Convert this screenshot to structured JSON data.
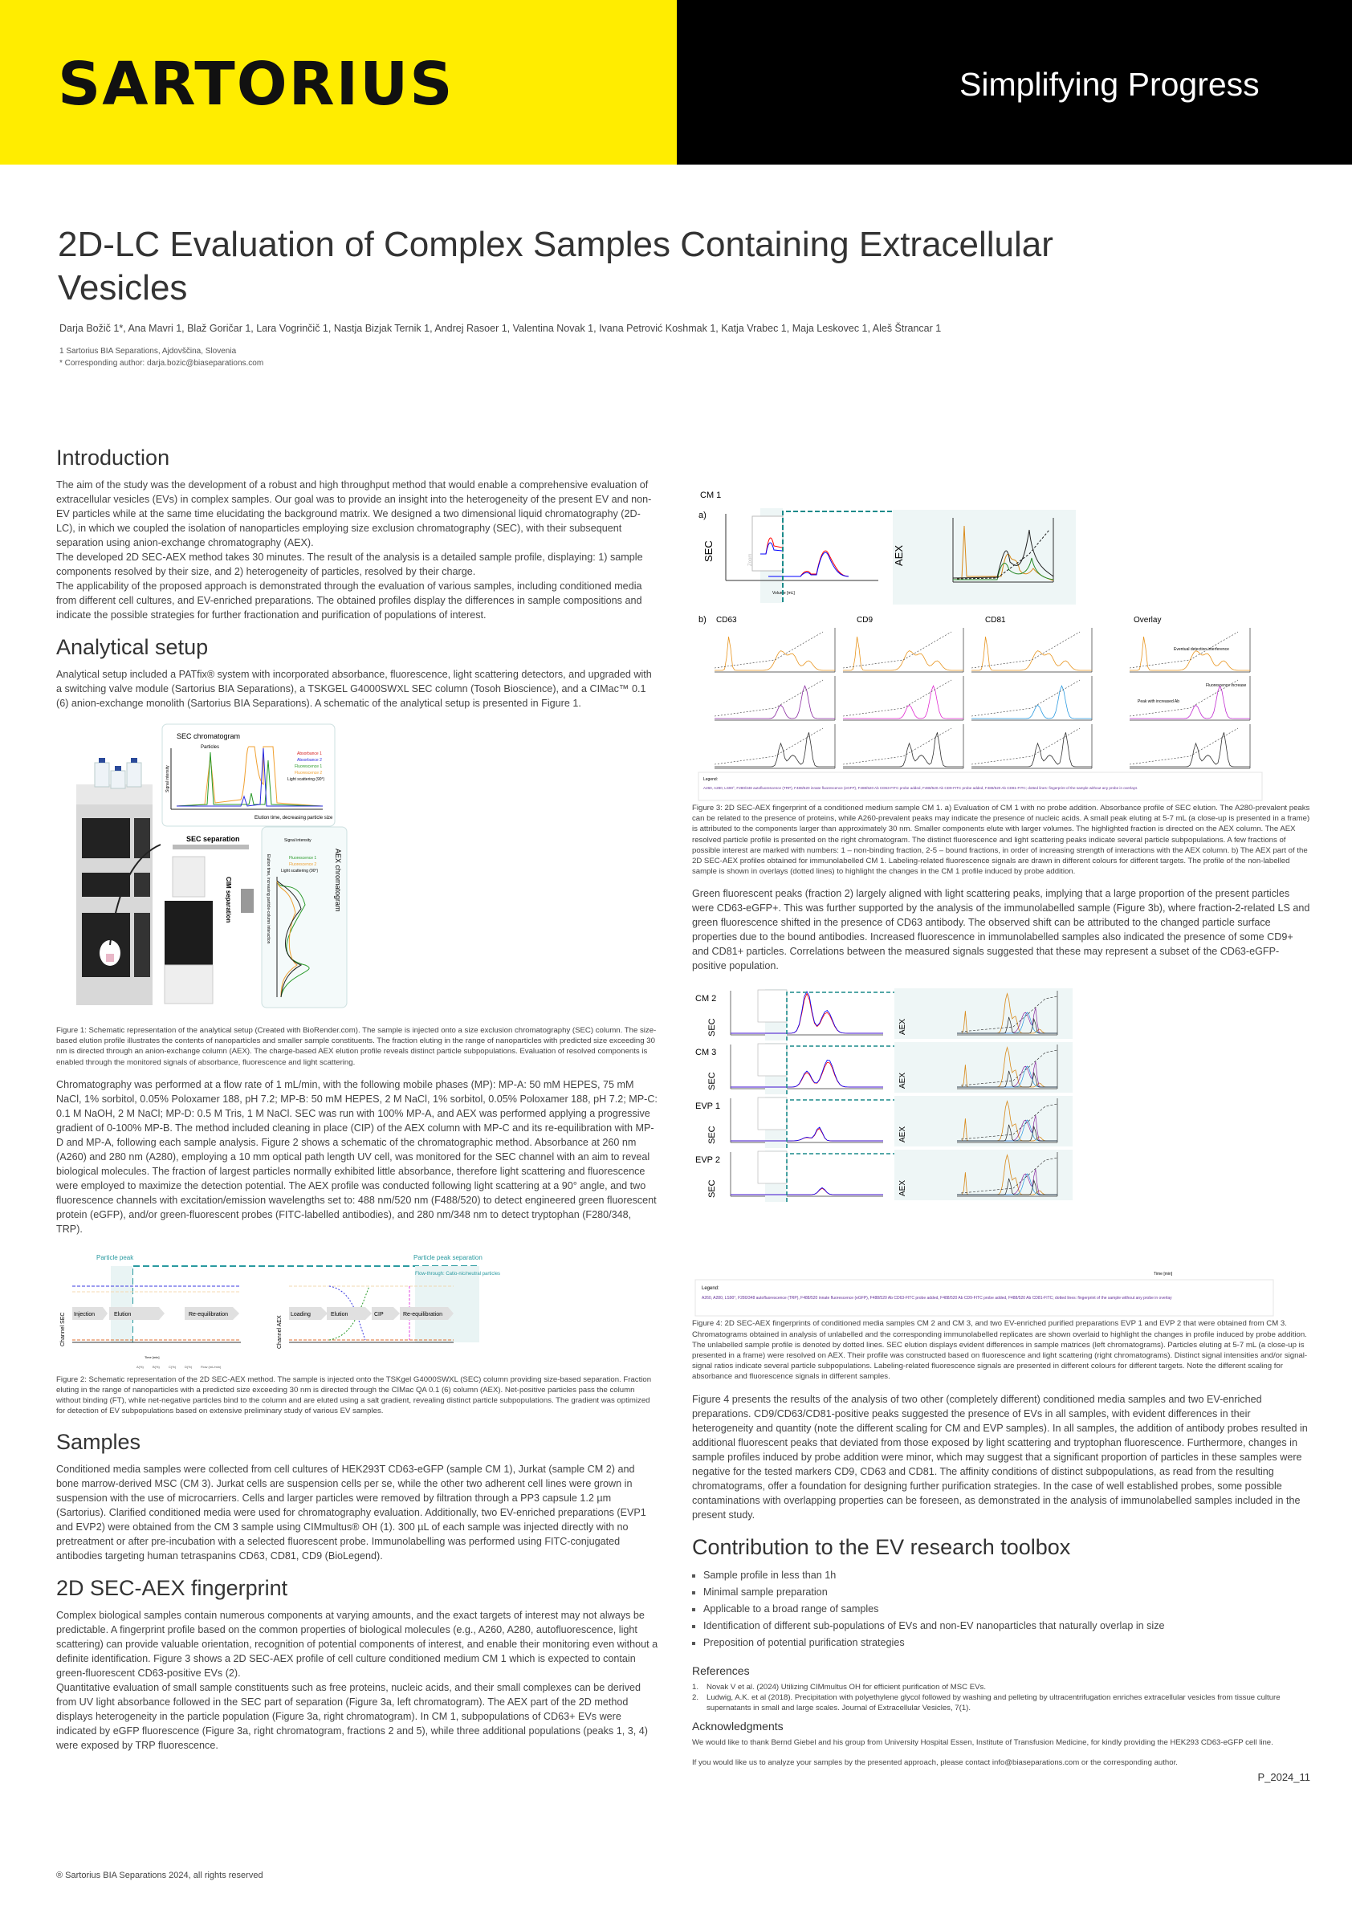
{
  "header": {
    "logo": "SARTORIUS",
    "slogan": "Simplifying Progress",
    "brand_yellow": "#FFED00"
  },
  "title": "2D-LC Evaluation of Complex Samples Containing Extracellular Vesicles",
  "authors": "Darja Božič 1*, Ana Mavri 1, Blaž Goričar 1, Lara Vogrinčič 1, Nastja Bizjak Ternik 1, Andrej Rasoer 1, Valentina Novak 1, Ivana Petrović Koshmak 1, Katja Vrabec 1, Maja Leskovec 1, Aleš Štrancar 1",
  "affiliations": [
    "1 Sartorius BIA Separations, Ajdovščina, Slovenia",
    "* Corresponding author: darja.bozic@biaseparations.com"
  ],
  "intro": {
    "heading": "Introduction",
    "paragraphs": [
      "The aim of the study was the development of a robust and high throughput method that would enable a comprehensive evaluation of extracellular vesicles (EVs) in complex samples. Our goal was to provide an insight into the heterogeneity of the present EV and non-EV particles while at the same time elucidating the background matrix. We designed a two dimensional liquid chromatography (2D-LC), in which we coupled the isolation of nanoparticles employing size exclusion chromatography (SEC), with their subsequent separation using anion-exchange chromatography (AEX).",
      "The developed 2D SEC-AEX method takes 30 minutes. The result of the analysis is a detailed sample profile, displaying: 1) sample components resolved by their size, and 2) heterogeneity of particles, resolved by their charge.",
      "The applicability of the proposed approach is demonstrated through the evaluation of various samples, including conditioned media from different cell cultures, and EV-enriched preparations. The obtained profiles display the differences in sample compositions and indicate the possible strategies for further fractionation and purification of populations of interest."
    ]
  },
  "setup": {
    "heading": "Analytical setup",
    "text": "Analytical setup included a PATfix® system with incorporated absorbance, fluorescence, light scattering detectors, and upgraded with a switching valve module (Sartorius BIA Separations), a TSKGEL G4000SWXL SEC column (Tosoh Bioscience), and a CIMac™ 0.1 (6) anion-exchange monolith (Sartorius BIA Separations). A schematic of the analytical setup is presented in Figure 1."
  },
  "fig1": {
    "sec_title": "SEC chromatogram",
    "particles": "Particles",
    "y_label": "Signal intensity",
    "x_label": "Elution time, decreasing particle size",
    "legend": [
      "Absorbance 1",
      "Absorbance 2",
      "Fluorescence 1",
      "Fluorescence 2",
      "Light scattering (90°)"
    ],
    "legend_aex": [
      "Fluorescence 1",
      "Fluorescence 2",
      "Light scattering (90°)"
    ],
    "sec_sep": "SEC separation",
    "cim_sep": "CIM separation",
    "aex_title": "AEX chromatogram",
    "aex_y": "Signal intensity",
    "aex_x": "Elution time, increasing particle-column interaction",
    "colors": {
      "abs1": "#d62020",
      "abs2": "#2a2ae0",
      "fl1": "#2a9a2a",
      "fl2": "#f0a030",
      "ls": "#222222"
    },
    "caption": "Figure 1: Schematic representation of the analytical setup (Created with BioRender.com). The sample is injected onto a size exclusion chromatography (SEC) column. The size-based elution profile illustrates the contents of nanoparticles and smaller sample constituents. The fraction eluting in the range of nanoparticles with predicted size exceeding 30 nm is directed through an anion-exchange column (AEX). The charge-based AEX elution profile reveals distinct particle subpopulations. Evaluation of resolved components is enabled through the monitored signals of absorbance, fluorescence and light scattering."
  },
  "chromatography": "Chromatography was performed at a flow rate of 1 mL/min, with the following mobile phases (MP): MP-A: 50 mM HEPES, 75 mM NaCl, 1% sorbitol, 0.05% Poloxamer 188, pH 7.2; MP-B: 50 mM HEPES, 2 M NaCl, 1% sorbitol, 0.05% Poloxamer 188, pH 7.2; MP-C: 0.1 M NaOH, 2 M NaCl; MP-D: 0.5 M Tris, 1 M NaCl. SEC was run with 100% MP-A, and AEX was performed applying a progressive gradient of 0-100% MP-B. The method included cleaning in place (CIP) of the AEX column with MP-C and its re-equilibration with MP-D and MP-A, following each sample analysis. Figure 2 shows a schematic of the chromatographic method. Absorbance at 260 nm (A260) and 280 nm (A280), employing a 10 mm optical path length UV cell, was monitored for the SEC channel with an aim to reveal biological molecules. The fraction of largest particles normally exhibited little absorbance, therefore light scattering and fluorescence were employed to maximize the detection potential. The AEX profile was conducted following light scattering at a 90° angle, and two fluorescence channels with excitation/emission wavelengths set to: 488 nm/520 nm (F488/520) to detect engineered green fluorescent protein (eGFP), and/or green-fluorescent probes (FITC-labelled antibodies), and 280 nm/348 nm to detect tryptophan (F280/348, TRP).",
  "fig2": {
    "particle_peak": "Particle peak",
    "particle_sep": "Particle peak separation",
    "ft_label": "Flow-through: Catio-nic/neutral particles",
    "ch_sec": "Channel SEC",
    "ch_aex": "Channel AEX",
    "sec_steps": [
      "Injection",
      "Elution",
      "Re-equilibration"
    ],
    "aex_steps": [
      "Loading",
      "Elution",
      "CIP",
      "Re-equilibration"
    ],
    "x_label": "Time [min]",
    "legend": [
      "A(%)",
      "B(%)",
      "C(%)",
      "D(%)",
      "Flow (mL/min)"
    ],
    "caption": "Figure 2: Schematic representation of the 2D SEC-AEX method. The sample is injected onto the TSKgel G4000SWXL (SEC) column providing size-based separation. Fraction eluting in the range of nanoparticles with a predicted size exceeding 30 nm is directed through the CIMac QA 0.1 (6) column (AEX). Net-positive particles pass the column without binding (FT), while net-negative particles bind to the column and are eluted using a salt gradient, revealing distinct particle subpopulations. The gradient was optimized for detection of EV subpopulations based on extensive preliminary study of various EV samples."
  },
  "samples": {
    "heading": "Samples",
    "text": "Conditioned media samples were collected from cell cultures of HEK293T CD63-eGFP (sample CM 1), Jurkat (sample CM 2) and bone marrow-derived MSC (CM 3). Jurkat cells are suspension cells per se, while the other two adherent cell lines were grown in suspension with the use of microcarriers. Cells and larger particles were removed by filtration through a PP3 capsule 1.2 µm (Sartorius). Clarified conditioned media were used for chromatography evaluation. Additionally, two EV-enriched preparations (EVP1 and EVP2) were obtained from the CM 3 sample using CIMmultus® OH (1). 300 µL of each sample was injected directly with no pretreatment or after pre-incubation with a selected fluorescent probe. Immunolabelling was performed using FITC-conjugated antibodies targeting human tetraspanins CD63, CD81, CD9 (BioLegend)."
  },
  "fingerprint": {
    "heading": "2D SEC-AEX fingerprint",
    "paragraphs": [
      "Complex biological samples contain numerous components at varying amounts, and the exact targets of interest may not always be predictable. A fingerprint profile based on the common properties of biological molecules (e.g., A260, A280, autofluorescence, light scattering) can provide valuable orientation, recognition of potential components of interest, and enable their monitoring even without a definite identification. Figure 3 shows a 2D SEC-AEX profile of cell culture conditioned medium CM 1 which is expected to contain green-fluorescent CD63-positive EVs (2).",
      "Quantitative evaluation of small sample constituents such as free proteins, nucleic acids, and their small complexes can be derived from UV light absorbance followed in the SEC part of separation (Figure 3a, left chromatogram). The AEX part of the 2D method displays heterogeneity in the particle population (Figure 3a, right chromatogram). In CM 1, subpopulations of CD63+ EVs were indicated by eGFP fluorescence (Figure 3a, right chromatogram, fractions 2 and 5), while three additional populations (peaks 1, 3, 4) were exposed by TRP fluorescence."
    ]
  },
  "copyright": "® Sartorius BIA Separations 2024, all rights reserved",
  "fig3": {
    "sample": "CM 1",
    "a": "a)",
    "b": "b)",
    "sec": "SEC",
    "aex": "AEX",
    "zoom": "Zoom",
    "x_label": "Volume [mL]",
    "panels": [
      "CD63",
      "CD9",
      "CD81",
      "Overlay"
    ],
    "ann1": "Eventual detection interference",
    "ann2": "Fluorescence increase",
    "ann3": "Peak with increased Ab",
    "legend_title": "Legend:",
    "legend": "A260, A280, LS90°, F280/348 autofluorescence (TRP), F488/520 innate fluorescence (eGFP), F488/520 Ab CD63-FITC probe added, F488/520 Ab CD9-FITC probe added, F488/520 Ab CD81-FITC; dotted lines: fingerprint of the sample without any probe in overlays",
    "caption": "Figure 3: 2D SEC-AEX fingerprint of a conditioned medium sample CM 1. a) Evaluation of CM 1 with no probe addition. Absorbance profile of SEC elution. The A280-prevalent peaks can be related to the presence of proteins, while A260-prevalent peaks may indicate the presence of nucleic acids. A small peak eluting at 5-7 mL (a close-up is presented in a frame) is attributed to the components larger than approximately 30 nm. Smaller components elute with larger volumes. The highlighted fraction is directed on the AEX column. The AEX resolved particle profile is presented on the right chromatogram. The distinct fluorescence and light scattering peaks indicate several particle subpopulations. A few fractions of possible interest are marked with numbers: 1 – non-binding fraction, 2-5 – bound fractions, in order of increasing strength of interactions with the AEX column. b) The AEX part of the 2D SEC-AEX profiles obtained for immunolabelled CM 1. Labeling-related fluorescence signals are drawn in different colours for different targets. The profile of the non-labelled sample is shown in overlays (dotted lines) to highlight the changes in the CM 1 profile induced by probe addition."
  },
  "fig3_text": "Green fluorescent peaks (fraction 2) largely aligned with light scattering peaks, implying that a large proportion of the present particles were CD63-eGFP+. This was further supported by the analysis of the immunolabelled sample (Figure 3b), where fraction-2-related LS and green fluorescence shifted in the presence of CD63 antibody. The observed shift can be attributed to the changed particle surface properties due to the bound antibodies. Increased fluorescence in immunolabelled samples also indicated the presence of some CD9+ and CD81+ particles. Correlations between the measured signals suggested that these may represent a subset of the CD63-eGFP-positive population.",
  "fig4": {
    "samples": [
      "CM 2",
      "CM 3",
      "EVP 1",
      "EVP 2"
    ],
    "sec": "SEC",
    "aex": "AEX",
    "zoom": "Zoom",
    "x_label": "Time [min]",
    "legend_title": "Legend:",
    "legend": "A260, A280, LS90°, F280/348 autofluorescence (TRP), F488/520 innate fluorescence (eGFP), F488/520 Ab CD63-FITC probe added, F488/520 Ab CD9-FITC probe added, F488/520 Ab CD81-FITC; dotted lines: fingerprint of the sample without any probe in overlay",
    "caption": "Figure 4: 2D SEC-AEX fingerprints of conditioned media samples CM 2 and CM 3, and two EV-enriched purified preparations EVP 1 and EVP 2 that were obtained from CM 3. Chromatograms obtained in analysis of unlabelled and the corresponding immunolabelled replicates are shown overlaid to highlight the changes in profile induced by probe addition. The unlabelled sample profile is denoted by dotted lines. SEC elution displays evident differences in sample matrices (left chromatograms). Particles eluting at 5-7 mL (a close-up is presented in a frame) were resolved on AEX. Their profile was constructed based on fluorescence and light scattering (right chromatograms). Distinct signal intensities and/or signal-signal ratios indicate several particle subpopulations. Labeling-related fluorescence signals are presented in different colours for different targets. Note the different scaling for absorbance and fluorescence signals in different samples."
  },
  "fig4_text": "Figure 4 presents the results of the analysis of two other (completely different) conditioned media samples and two EV-enriched preparations. CD9/CD63/CD81-positive peaks suggested the presence of EVs in all samples, with evident differences in their heterogeneity and quantity (note the different scaling for CM and EVP samples). In all samples, the addition of antibody probes resulted in additional fluorescent peaks that deviated from those exposed by light scattering and tryptophan fluorescence. Furthermore, changes in sample profiles induced by probe addition were minor, which may suggest that a significant proportion of particles in these samples were negative for the tested markers CD9, CD63 and CD81. The affinity conditions of distinct subpopulations, as read from the resulting chromatograms, offer a foundation for designing further purification strategies. In the case of well established probes, some possible contaminations with overlapping properties can be foreseen, as demonstrated in the analysis of immunolabelled samples included in the present study.",
  "contribution": {
    "heading": "Contribution to the EV research toolbox",
    "items": [
      "Sample profile in less than 1h",
      "Minimal sample preparation",
      "Applicable to a broad range of samples",
      "Identification of different sub-populations of EVs and non-EV nanoparticles that naturally overlap in size",
      "Preposition of potential purification strategies"
    ]
  },
  "references": {
    "heading": "References",
    "items": [
      {
        "n": "1.",
        "text": "Novak V et al. (2024) Utilizing CIMmultus OH for efficient purification of MSC EVs."
      },
      {
        "n": "2.",
        "text": "Ludwig, A.K. et al (2018). Precipitation with polyethylene glycol followed by washing and pelleting by ultracentrifugation enriches extracellular vesicles from tissue culture supernatants in small and large scales. Journal of Extracellular Vesicles, 7(1)."
      }
    ]
  },
  "acknowledgments": {
    "heading": "Acknowledgments",
    "text": "We would like to thank Bernd Giebel and his group from University Hospital Essen, Institute of Transfusion Medicine, for kindly providing the HEK293 CD63-eGFP cell line."
  },
  "contact": "If you would like us to analyze your samples by the presented approach, please contact info@biaseparations.com or the corresponding author.",
  "poster_id": "P_2024_11"
}
